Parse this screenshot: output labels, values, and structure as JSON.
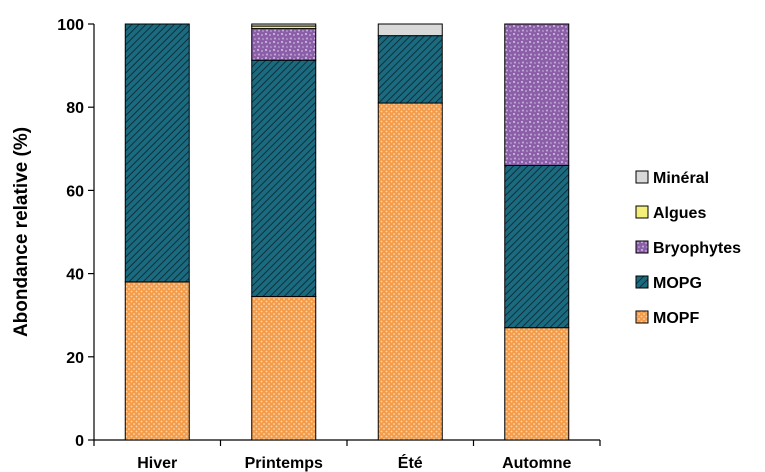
{
  "chart_data": {
    "type": "bar",
    "stacked": true,
    "categories": [
      "Hiver",
      "Printemps",
      "Été",
      "Automne"
    ],
    "series": [
      {
        "name": "MOPF",
        "values": [
          38,
          34.5,
          81,
          27
        ],
        "color": "#f39c4a",
        "pattern": "dots"
      },
      {
        "name": "MOPG",
        "values": [
          62,
          56.8,
          16.2,
          39
        ],
        "color": "#1b6b80",
        "pattern": "diagonal-hatch"
      },
      {
        "name": "Bryophytes",
        "values": [
          0,
          7.6,
          0,
          34
        ],
        "color": "#8b5fa8",
        "pattern": "speckle"
      },
      {
        "name": "Algues",
        "values": [
          0,
          0.6,
          0,
          0
        ],
        "color": "#f4ee7a",
        "pattern": "solid"
      },
      {
        "name": "Minéral",
        "values": [
          0,
          0.5,
          2.8,
          0
        ],
        "color": "#d9d9d9",
        "pattern": "solid"
      }
    ],
    "ylabel": "Abondance relative (%)",
    "ylim": [
      0,
      100
    ],
    "yticks": [
      0,
      20,
      40,
      60,
      80,
      100
    ],
    "grid": false,
    "legend_position": "right",
    "legend_order": [
      "Minéral",
      "Algues",
      "Bryophytes",
      "MOPG",
      "MOPF"
    ]
  }
}
